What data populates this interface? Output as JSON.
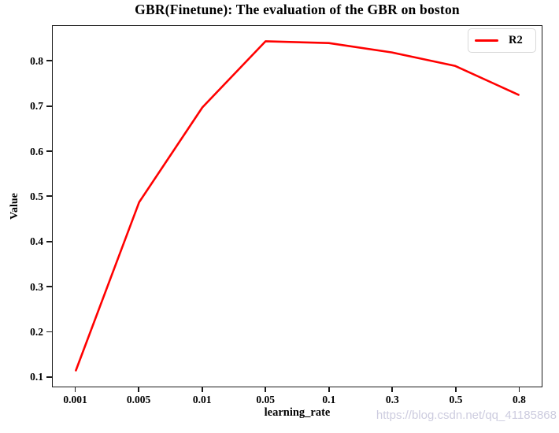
{
  "chart": {
    "title": "GBR(Finetune): The evaluation of the GBR on boston",
    "xlabel": "learning_rate",
    "ylabel": "Value",
    "legend": {
      "label": "R2"
    },
    "watermark": "https://blog.csdn.net/qq_41185868"
  },
  "colors": {
    "line": "#ff0000",
    "spine": "#1a1a1a",
    "text": "#000000",
    "watermark": "#cdccdf",
    "legend_border": "#d8d8d8",
    "background": "#ffffff"
  },
  "chart_data": {
    "type": "line",
    "categories": [
      "0.001",
      "0.005",
      "0.01",
      "0.05",
      "0.1",
      "0.3",
      "0.5",
      "0.8"
    ],
    "series": [
      {
        "name": "R2",
        "color": "#ff0000",
        "values": [
          0.113,
          0.487,
          0.698,
          0.845,
          0.841,
          0.82,
          0.79,
          0.726
        ]
      }
    ],
    "title": "GBR(Finetune): The evaluation of the GBR on boston",
    "xlabel": "learning_rate",
    "ylabel": "Value",
    "yticks": [
      0.1,
      0.2,
      0.3,
      0.4,
      0.5,
      0.6,
      0.7,
      0.8
    ],
    "ylim": [
      0.077,
      0.879
    ],
    "x_axis_type": "categorical",
    "x_margin_fraction": 0.0474,
    "grid": false,
    "legend_position": "upper right"
  }
}
